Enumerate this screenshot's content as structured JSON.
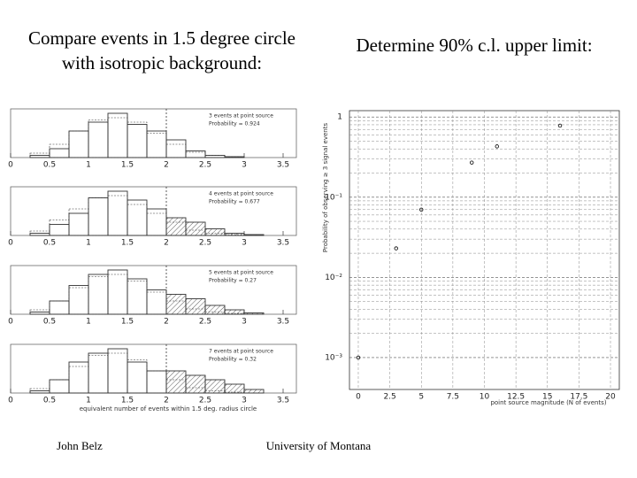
{
  "header": {
    "left_lines": [
      "Compare events in 1.5 degree circle",
      "with isotropic background:"
    ],
    "right": "Determine 90% c.l. upper limit:"
  },
  "left_plots": {
    "xlim": [
      0,
      3.5
    ],
    "xticks": [
      0,
      0.5,
      1,
      1.5,
      2,
      2.5,
      3,
      3.5
    ],
    "cut_x": 2,
    "x_label": "equivalent number of events within 1.5 deg. radius circle",
    "bins": [
      0,
      0.25,
      0.5,
      0.75,
      1,
      1.25,
      1.5,
      1.75,
      2,
      2.25,
      2.5,
      2.75,
      3,
      3.25,
      3.5
    ],
    "panels": [
      {
        "legend": [
          "3 events at point source",
          "Probability = 0.924"
        ],
        "background": [
          0,
          0.1,
          0.3,
          0.6,
          0.85,
          0.9,
          0.8,
          0.55,
          0.3,
          0.12,
          0.05,
          0.02,
          0,
          0
        ],
        "observed": [
          0,
          0.05,
          0.2,
          0.6,
          0.8,
          1,
          0.75,
          0.6,
          0.4,
          0.15,
          0.05,
          0.02,
          0,
          0
        ]
      },
      {
        "legend": [
          "4 events at point source",
          "Probability = 0.677"
        ],
        "background": [
          0,
          0.1,
          0.35,
          0.6,
          0.85,
          0.9,
          0.7,
          0.5,
          0.3,
          0.12,
          0.05,
          0.02,
          0,
          0
        ],
        "observed": [
          0,
          0.05,
          0.25,
          0.5,
          0.85,
          1,
          0.8,
          0.6,
          0.4,
          0.3,
          0.15,
          0.05,
          0.02,
          0
        ]
      },
      {
        "legend": [
          "5 events at point source",
          "Probability = 0.27"
        ],
        "background": [
          0,
          0.1,
          0.3,
          0.6,
          0.85,
          0.9,
          0.75,
          0.5,
          0.3,
          0.12,
          0.05,
          0.02,
          0,
          0
        ],
        "observed": [
          0,
          0.05,
          0.3,
          0.65,
          0.9,
          1,
          0.8,
          0.55,
          0.45,
          0.35,
          0.2,
          0.1,
          0.03,
          0
        ]
      },
      {
        "legend": [
          "7 events at point source",
          "Probability = 0.32"
        ],
        "background": [
          0,
          0.1,
          0.3,
          0.6,
          0.85,
          0.9,
          0.75,
          0.5,
          0.3,
          0.12,
          0.05,
          0.02,
          0,
          0
        ],
        "observed": [
          0,
          0.05,
          0.3,
          0.7,
          0.9,
          1,
          0.7,
          0.5,
          0.5,
          0.4,
          0.3,
          0.2,
          0.08,
          0
        ]
      }
    ]
  },
  "chart_data": {
    "type": "scatter",
    "x_label": "point source magnitude (N of events)",
    "y_label": "Probability of observing ≥ 3 signal events",
    "x": [
      0,
      3,
      5,
      9,
      11,
      16
    ],
    "values": [
      0.001,
      0.023,
      0.07,
      0.27,
      0.43,
      0.78
    ],
    "color": "#000000",
    "log_y": true,
    "grid": true,
    "xlim": [
      -0.7,
      20.7
    ],
    "ylim": [
      0.0004,
      1.2
    ],
    "xticks": [
      0,
      2.5,
      5,
      7.5,
      10,
      12.5,
      15,
      17.5,
      20
    ],
    "yticks": [
      1,
      {
        "value": 0.1,
        "label": "10⁻¹"
      },
      {
        "value": 0.01,
        "label": "10⁻²"
      },
      {
        "value": 0.001,
        "label": "10⁻³"
      }
    ]
  },
  "footer": {
    "left": "John Belz",
    "center": "University of Montana"
  }
}
